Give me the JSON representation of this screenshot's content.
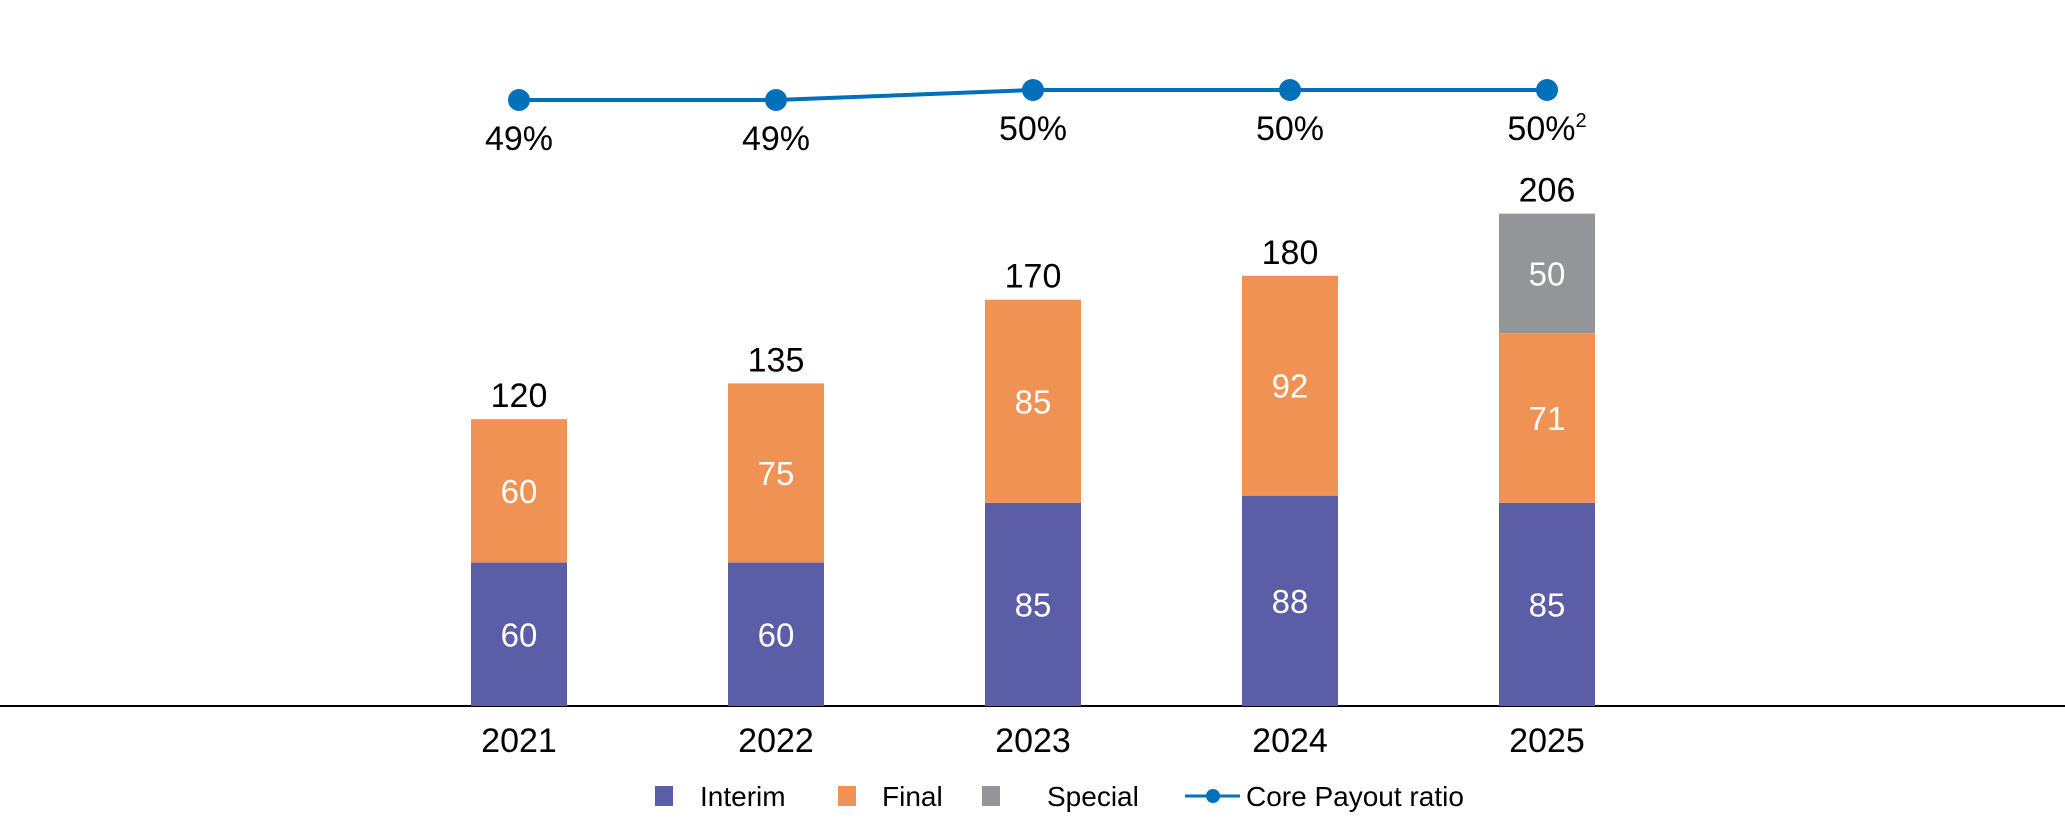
{
  "chart_data": {
    "type": "bar",
    "stacked": true,
    "categories": [
      "2021",
      "2022",
      "2023",
      "2024",
      "2025"
    ],
    "series": [
      {
        "name": "Interim",
        "color": "#5B5EA6",
        "values": [
          60,
          60,
          85,
          88,
          85
        ]
      },
      {
        "name": "Final",
        "color": "#F09254",
        "values": [
          60,
          75,
          85,
          92,
          71
        ]
      },
      {
        "name": "Special",
        "color": "#939598",
        "values": [
          0,
          0,
          0,
          0,
          50
        ]
      }
    ],
    "totals": [
      120,
      135,
      170,
      180,
      206
    ],
    "line_series": {
      "name": "Core Payout ratio",
      "color": "#0070BB",
      "values": [
        49,
        49,
        50,
        50,
        50
      ],
      "labels": [
        "49%",
        "49%",
        "50%",
        "50%",
        "50%"
      ],
      "footnotes": [
        "",
        "",
        "",
        "",
        "2"
      ]
    },
    "legend_position": "bottom",
    "grid": false,
    "ylim": [
      0,
      206
    ]
  }
}
